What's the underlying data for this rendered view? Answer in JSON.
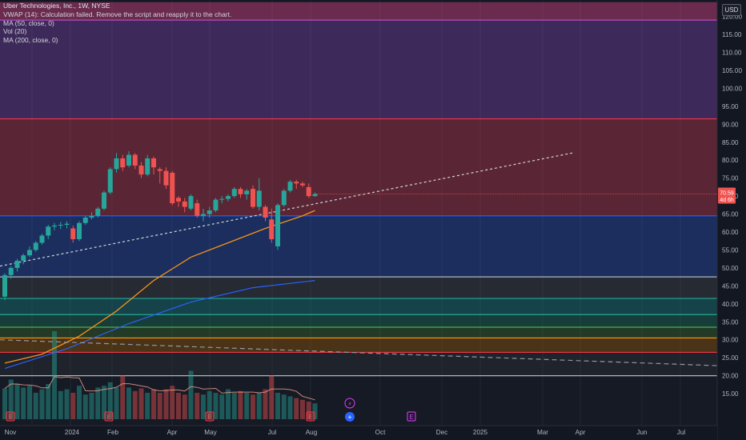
{
  "legend": {
    "title": "Uber Technologies, Inc., 1W, NYSE",
    "vwap": "VWAP (14): Calculation failed. Remove the script and reapply it to the chart.",
    "ma50": "MA (50, close, 0)",
    "vol": "Vol (20)",
    "ma200": "MA (200, close, 0)"
  },
  "currency_label": "USD",
  "price_badge": {
    "price": "70.59",
    "countdown": "4d 6h"
  },
  "colors": {
    "up": "#26a69a",
    "down": "#ef5350",
    "ma50": "#f7931a",
    "ma200": "#2962ff",
    "trend": "#d1d4dc"
  },
  "price_axis": {
    "min": 12,
    "max": 124,
    "ticks": [
      15,
      20,
      25,
      30,
      35,
      40,
      45,
      50,
      55,
      60,
      65,
      70,
      75,
      80,
      85,
      90,
      95,
      100,
      105,
      110,
      115,
      120
    ]
  },
  "time_axis": [
    "Nov",
    "2024",
    "Feb",
    "Apr",
    "May",
    "Jul",
    "Aug",
    "Oct",
    "Dec",
    "2025",
    "Mar",
    "Apr",
    "Jun",
    "Jul"
  ],
  "horizontal_levels": [
    {
      "price": 119,
      "color": "#b54ac0"
    },
    {
      "price": 91.5,
      "color": "#f23645"
    },
    {
      "price": 64.5,
      "color": "#2962ff"
    },
    {
      "price": 47.5,
      "color": "#b2b5be"
    },
    {
      "price": 41.5,
      "color": "#22ab94"
    },
    {
      "price": 37,
      "color": "#22ab94"
    },
    {
      "price": 33.5,
      "color": "#4caf50"
    },
    {
      "price": 30.5,
      "color": "#ff9800"
    },
    {
      "price": 26.5,
      "color": "#f23645"
    },
    {
      "price": 20,
      "color": "#b2b5be"
    }
  ],
  "zones": [
    {
      "from": 119,
      "to": 124,
      "color": "#6a2b4e"
    },
    {
      "from": 91.5,
      "to": 119,
      "color": "#3e2a5a"
    },
    {
      "from": 64.5,
      "to": 91.5,
      "color": "#5a2534"
    },
    {
      "from": 47.5,
      "to": 64.5,
      "color": "#1b2e5e"
    },
    {
      "from": 41.5,
      "to": 47.5,
      "color": "#262a33"
    },
    {
      "from": 37,
      "to": 41.5,
      "color": "#16424a"
    },
    {
      "from": 33.5,
      "to": 37,
      "color": "#173d3a"
    },
    {
      "from": 30.5,
      "to": 33.5,
      "color": "#233a26"
    },
    {
      "from": 26.5,
      "to": 30.5,
      "color": "#4a3317"
    },
    {
      "from": 20,
      "to": 26.5,
      "color": "#1f232c"
    }
  ],
  "events": [
    {
      "label": "E",
      "kind": "earnings"
    },
    {
      "label": "E",
      "kind": "earnings"
    },
    {
      "label": "E",
      "kind": "earnings"
    },
    {
      "label": "E",
      "kind": "earnings"
    },
    {
      "label": "E",
      "kind": "earnings-upcoming"
    },
    {
      "label": "⚡",
      "kind": "split"
    },
    {
      "label": "+",
      "kind": "news"
    }
  ],
  "chart_data": {
    "type": "candlestick",
    "symbol": "Uber Technologies, Inc.",
    "interval": "1W",
    "exchange": "NYSE",
    "ylim": [
      12,
      124
    ],
    "candles": [
      {
        "o": 42,
        "h": 48.5,
        "l": 41,
        "c": 48
      },
      {
        "o": 48,
        "h": 50.5,
        "l": 47,
        "c": 50
      },
      {
        "o": 50,
        "h": 52.5,
        "l": 49,
        "c": 52
      },
      {
        "o": 52,
        "h": 54,
        "l": 51,
        "c": 53.5
      },
      {
        "o": 53.5,
        "h": 56,
        "l": 53,
        "c": 55
      },
      {
        "o": 55,
        "h": 57.5,
        "l": 54.5,
        "c": 57
      },
      {
        "o": 57,
        "h": 59.5,
        "l": 56.5,
        "c": 59
      },
      {
        "o": 59,
        "h": 62,
        "l": 58,
        "c": 61.5
      },
      {
        "o": 61.5,
        "h": 62.5,
        "l": 60.5,
        "c": 61.8
      },
      {
        "o": 61.8,
        "h": 62.8,
        "l": 60.8,
        "c": 62
      },
      {
        "o": 62,
        "h": 63,
        "l": 61,
        "c": 62.3
      },
      {
        "o": 61,
        "h": 61.8,
        "l": 57,
        "c": 58
      },
      {
        "o": 58,
        "h": 63,
        "l": 57.5,
        "c": 62.5
      },
      {
        "o": 62.5,
        "h": 64.5,
        "l": 62,
        "c": 64
      },
      {
        "o": 64,
        "h": 65.5,
        "l": 63.5,
        "c": 64.5
      },
      {
        "o": 64.5,
        "h": 67,
        "l": 64,
        "c": 66.5
      },
      {
        "o": 66.5,
        "h": 71.5,
        "l": 66,
        "c": 71
      },
      {
        "o": 71,
        "h": 78,
        "l": 70.5,
        "c": 77.5
      },
      {
        "o": 77.5,
        "h": 82,
        "l": 76.5,
        "c": 80.5
      },
      {
        "o": 80.5,
        "h": 81.5,
        "l": 77,
        "c": 78
      },
      {
        "o": 78.5,
        "h": 82.5,
        "l": 78,
        "c": 81.5
      },
      {
        "o": 81.5,
        "h": 82,
        "l": 77.5,
        "c": 78.5
      },
      {
        "o": 78.5,
        "h": 79.5,
        "l": 75,
        "c": 76
      },
      {
        "o": 76,
        "h": 81.5,
        "l": 75.5,
        "c": 80.5
      },
      {
        "o": 80.5,
        "h": 81,
        "l": 76,
        "c": 78
      },
      {
        "o": 77.5,
        "h": 78,
        "l": 73.5,
        "c": 77
      },
      {
        "o": 77,
        "h": 78,
        "l": 72,
        "c": 73
      },
      {
        "o": 76.5,
        "h": 77,
        "l": 67.5,
        "c": 68
      },
      {
        "o": 69.5,
        "h": 70,
        "l": 67,
        "c": 68.5
      },
      {
        "o": 68.5,
        "h": 69.5,
        "l": 65.5,
        "c": 67
      },
      {
        "o": 66.5,
        "h": 70.5,
        "l": 66,
        "c": 70
      },
      {
        "o": 68,
        "h": 69,
        "l": 64,
        "c": 64.5
      },
      {
        "o": 64.5,
        "h": 66.5,
        "l": 63,
        "c": 65
      },
      {
        "o": 65,
        "h": 67,
        "l": 64,
        "c": 66
      },
      {
        "o": 66,
        "h": 69.5,
        "l": 65.5,
        "c": 69
      },
      {
        "o": 69,
        "h": 70,
        "l": 68,
        "c": 69.2
      },
      {
        "o": 69.2,
        "h": 70.5,
        "l": 68.5,
        "c": 70
      },
      {
        "o": 70,
        "h": 72.5,
        "l": 69.5,
        "c": 72
      },
      {
        "o": 72,
        "h": 72.5,
        "l": 69.5,
        "c": 70.5
      },
      {
        "o": 70.5,
        "h": 72,
        "l": 69,
        "c": 71.5
      },
      {
        "o": 72,
        "h": 73,
        "l": 66.5,
        "c": 67
      },
      {
        "o": 67,
        "h": 75,
        "l": 66,
        "c": 71.5
      },
      {
        "o": 67,
        "h": 67.5,
        "l": 63,
        "c": 64
      },
      {
        "o": 63.5,
        "h": 66.5,
        "l": 57,
        "c": 58
      },
      {
        "o": 56,
        "h": 68,
        "l": 55,
        "c": 67.5
      },
      {
        "o": 67.5,
        "h": 72,
        "l": 67,
        "c": 71.5
      },
      {
        "o": 71.5,
        "h": 74.5,
        "l": 71,
        "c": 74
      },
      {
        "o": 74,
        "h": 74.5,
        "l": 72,
        "c": 73.5
      },
      {
        "o": 73.5,
        "h": 74,
        "l": 72.5,
        "c": 73
      },
      {
        "o": 72.5,
        "h": 73.5,
        "l": 69.5,
        "c": 70
      },
      {
        "o": 70,
        "h": 71,
        "l": 69.8,
        "c": 70.59
      }
    ],
    "volumes": [
      0.35,
      0.45,
      0.4,
      0.36,
      0.38,
      0.3,
      0.34,
      0.4,
      1.0,
      0.32,
      0.34,
      0.3,
      0.38,
      0.28,
      0.3,
      0.36,
      0.38,
      0.42,
      0.36,
      0.5,
      0.36,
      0.32,
      0.35,
      0.3,
      0.34,
      0.3,
      0.34,
      0.38,
      0.3,
      0.28,
      0.55,
      0.3,
      0.28,
      0.32,
      0.3,
      0.28,
      0.34,
      0.3,
      0.32,
      0.3,
      0.28,
      0.3,
      0.34,
      0.5,
      0.3,
      0.28,
      0.26,
      0.24,
      0.22,
      0.2,
      0.18
    ],
    "ma50": [
      {
        "i": 0,
        "v": 23.5
      },
      {
        "i": 6,
        "v": 26
      },
      {
        "i": 12,
        "v": 31
      },
      {
        "i": 18,
        "v": 38
      },
      {
        "i": 24,
        "v": 46.5
      },
      {
        "i": 30,
        "v": 53
      },
      {
        "i": 36,
        "v": 57
      },
      {
        "i": 42,
        "v": 61
      },
      {
        "i": 48,
        "v": 64.5
      },
      {
        "i": 50,
        "v": 66
      }
    ],
    "ma200": [
      {
        "i": 0,
        "v": 22
      },
      {
        "i": 10,
        "v": 27.5
      },
      {
        "i": 20,
        "v": 34.5
      },
      {
        "i": 30,
        "v": 40.5
      },
      {
        "i": 40,
        "v": 44.5
      },
      {
        "i": 50,
        "v": 46.5
      }
    ],
    "trendline": [
      {
        "x": 0,
        "v": 50.5
      },
      {
        "x": 715,
        "v": 82
      }
    ],
    "trendline_down": [
      {
        "x": 0,
        "v": 30
      },
      {
        "x": 932,
        "v": 22.5
      }
    ]
  }
}
